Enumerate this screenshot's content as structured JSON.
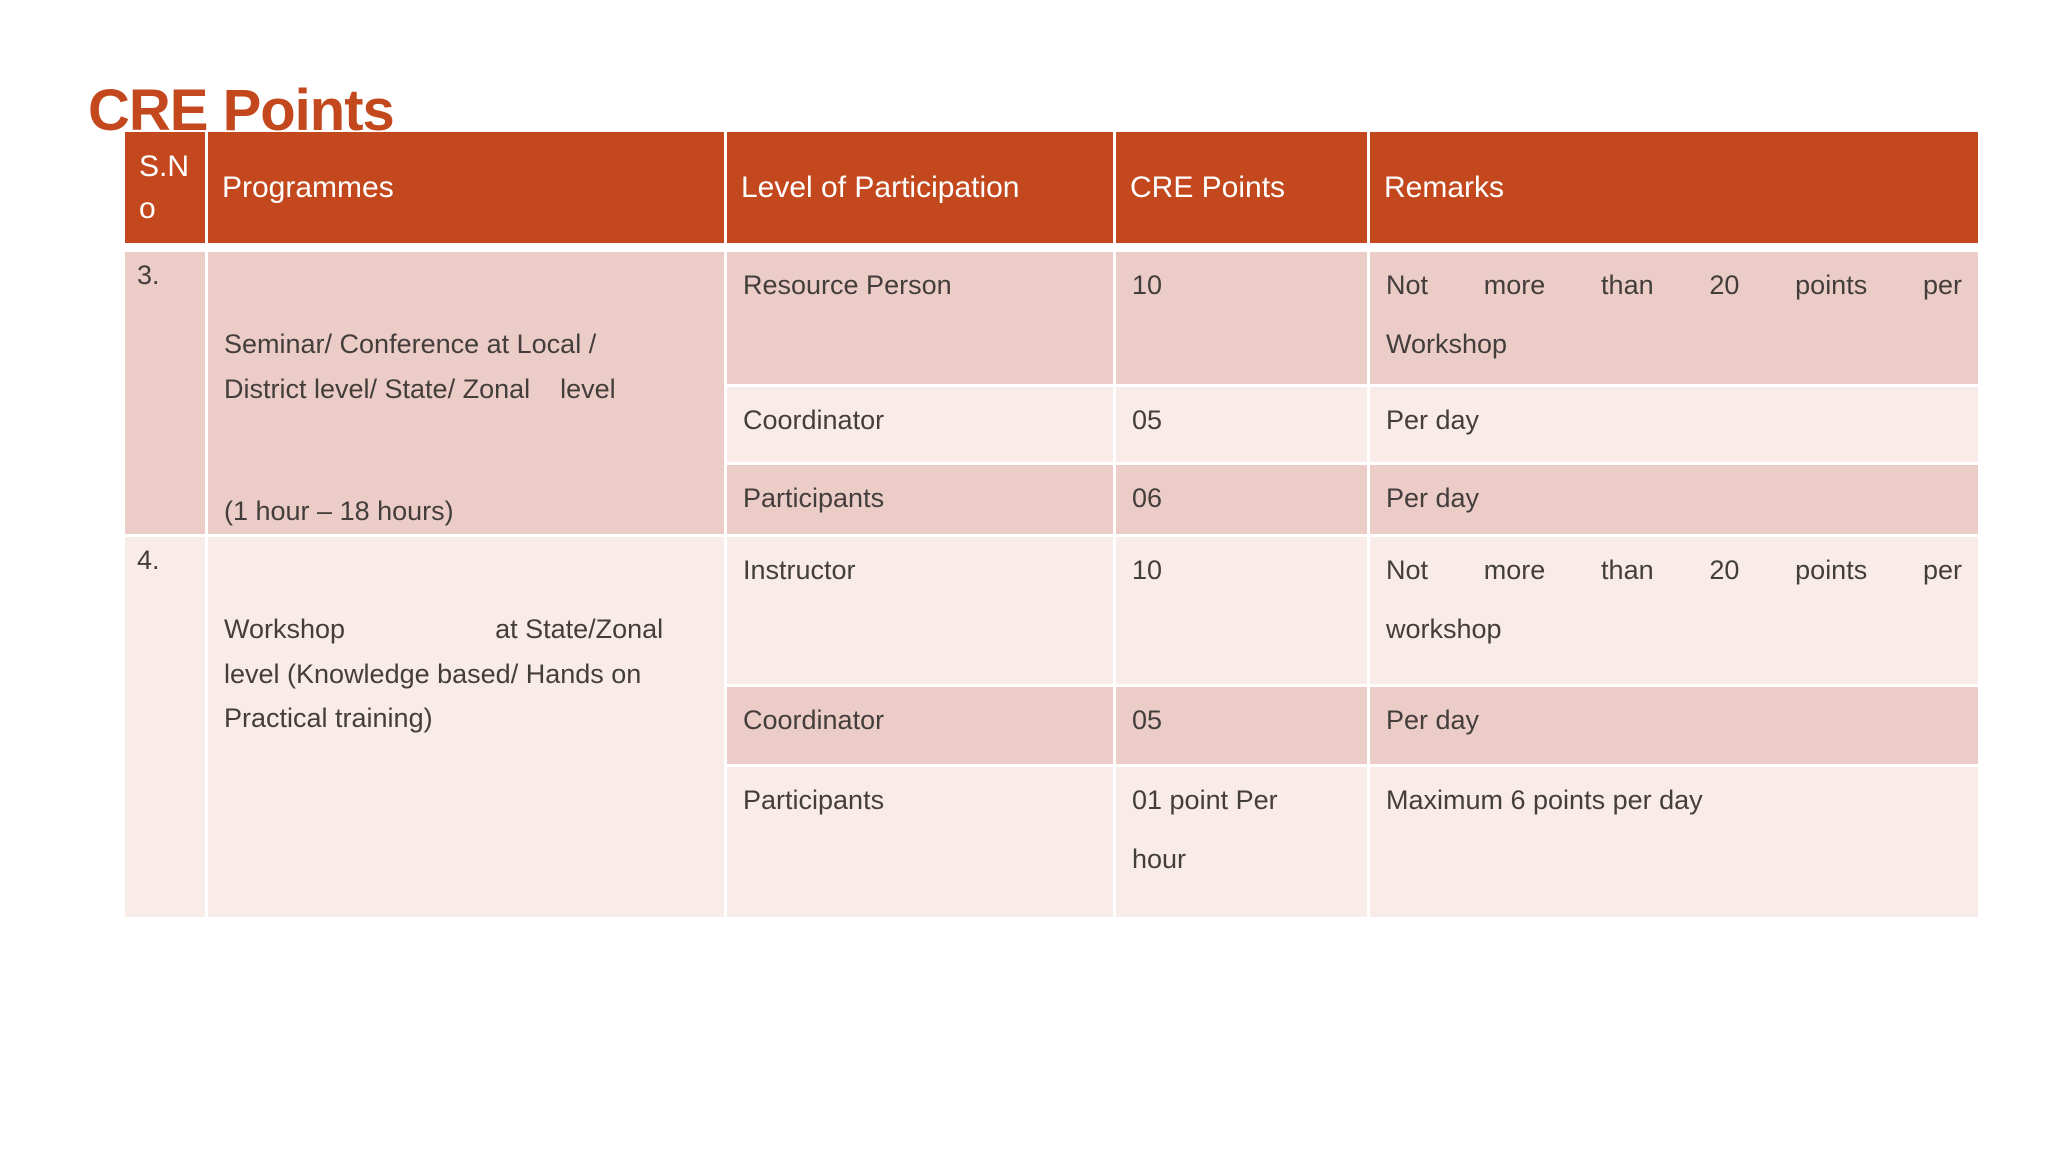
{
  "slide": {
    "title": "CRE Points"
  },
  "colors": {
    "accent": "#c4481d",
    "band-dark": "#ecccc7",
    "band-light": "#f9ebe8",
    "body-text": "#433e3c",
    "header-text": "#ffffff"
  },
  "table": {
    "headers": [
      "S.No",
      "Programmes",
      "Level of Participation",
      "CRE Points",
      "Remarks"
    ],
    "rows": [
      {
        "sno": "3.",
        "programme": [
          "Seminar/ Conference at Local /",
          "District level/ State/ Zonal    level"
        ],
        "programme_note": "(1 hour – 18 hours)",
        "entries": [
          {
            "level": "Resource Person",
            "points": "10",
            "remarks": [
              "Not more than 20 points per",
              "Workshop"
            ]
          },
          {
            "level": "Coordinator",
            "points": "05",
            "remarks": [
              "Per day"
            ]
          },
          {
            "level": "Participants",
            "points": "06",
            "remarks": [
              "Per day"
            ]
          }
        ]
      },
      {
        "sno": "4.",
        "programme": [
          "Workshop                    at State/Zonal",
          "level (Knowledge based/ Hands on",
          "Practical training)"
        ],
        "programme_note": "",
        "entries": [
          {
            "level": "Instructor",
            "points": "10",
            "remarks": [
              "Not more than 20 points per",
              "workshop"
            ]
          },
          {
            "level": "Coordinator",
            "points": "05",
            "remarks": [
              "Per day"
            ]
          },
          {
            "level": "Participants",
            "points": [
              "01 point Per",
              "hour"
            ],
            "remarks": [
              "Maximum 6 points per day"
            ]
          }
        ]
      }
    ]
  }
}
